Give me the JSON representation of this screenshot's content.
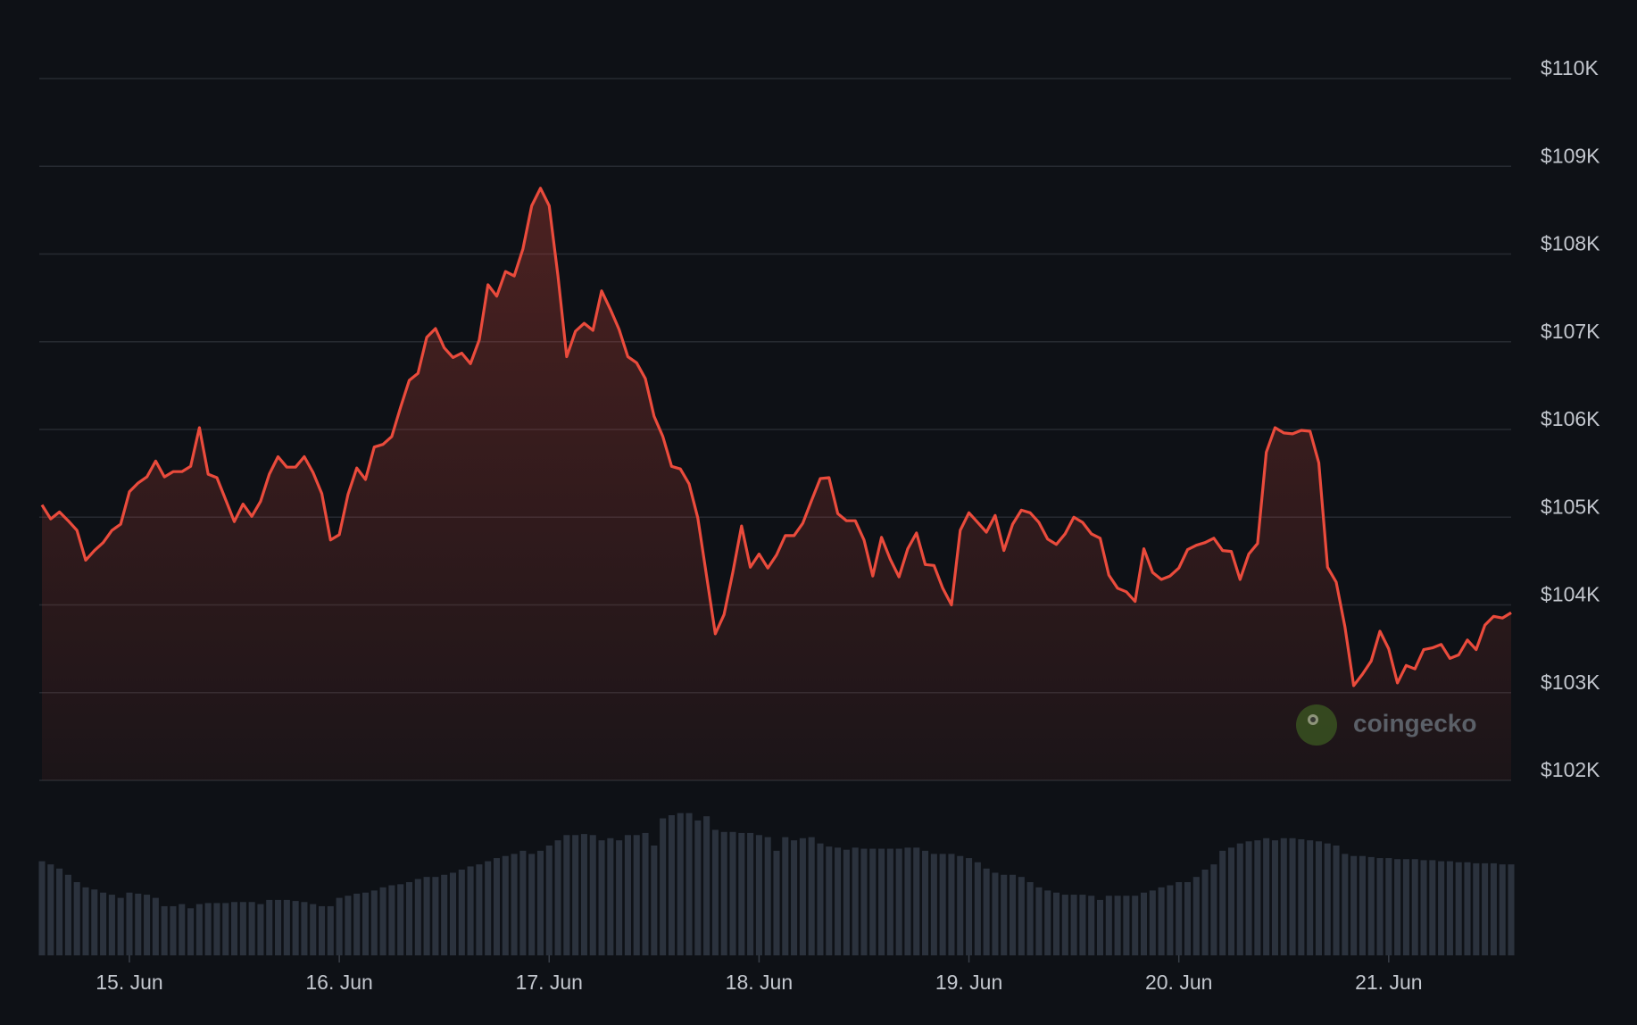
{
  "chart_data": {
    "type": "line",
    "categories": [
      null,
      null,
      null,
      null,
      null,
      null,
      null,
      null,
      null,
      null,
      "15. Jun",
      null,
      null,
      null,
      null,
      null,
      null,
      null,
      null,
      null,
      null,
      null,
      null,
      null,
      null,
      null,
      null,
      null,
      null,
      null,
      null,
      null,
      null,
      null,
      "16. Jun",
      null,
      null,
      null,
      null,
      null,
      null,
      null,
      null,
      null,
      null,
      null,
      null,
      null,
      null,
      null,
      null,
      null,
      null,
      null,
      null,
      null,
      null,
      null,
      "17. Jun",
      null,
      null,
      null,
      null,
      null,
      null,
      null,
      null,
      null,
      null,
      null,
      null,
      null,
      null,
      null,
      null,
      null,
      null,
      null,
      null,
      null,
      null,
      null,
      "18. Jun",
      null,
      null,
      null,
      null,
      null,
      null,
      null,
      null,
      null,
      null,
      null,
      null,
      null,
      null,
      null,
      null,
      null,
      null,
      null,
      null,
      null,
      null,
      null,
      "19. Jun",
      null,
      null,
      null,
      null,
      null,
      null,
      null,
      null,
      null,
      null,
      null,
      null,
      null,
      null,
      null,
      null,
      null,
      null,
      null,
      null,
      null,
      null,
      null,
      "20. Jun",
      null,
      null,
      null,
      null,
      null,
      null,
      null,
      null,
      null,
      null,
      null,
      null,
      null,
      null,
      null,
      null,
      null,
      null,
      null,
      null,
      null,
      null,
      null,
      "21. Jun",
      null,
      null,
      null,
      null,
      null,
      null,
      null,
      null,
      null,
      null,
      null,
      null,
      null,
      null
    ],
    "series": [
      {
        "color": "#ea4b3c",
        "values": [
          105140,
          104980,
          105060,
          104960,
          104850,
          104510,
          104620,
          104710,
          104850,
          104920,
          105290,
          105390,
          105460,
          105640,
          105460,
          105520,
          105520,
          105580,
          106020,
          105490,
          105450,
          105200,
          104950,
          105150,
          105010,
          105180,
          105490,
          105690,
          105570,
          105570,
          105690,
          105510,
          105270,
          104740,
          104800,
          105260,
          105560,
          105430,
          105800,
          105830,
          105920,
          106250,
          106560,
          106640,
          107050,
          107150,
          106930,
          106820,
          106870,
          106750,
          107020,
          107650,
          107520,
          107800,
          107750,
          108060,
          108550,
          108750,
          108550,
          107750,
          106830,
          107120,
          107210,
          107130,
          107580,
          107370,
          107140,
          106830,
          106760,
          106580,
          106150,
          105920,
          105580,
          105550,
          105380,
          104990,
          104330,
          103670,
          103890,
          104370,
          104900,
          104430,
          104580,
          104420,
          104570,
          104790,
          104790,
          104930,
          105190,
          105440,
          105450,
          105040,
          104960,
          104960,
          104740,
          104330,
          104770,
          104520,
          104320,
          104640,
          104820,
          104460,
          104450,
          104190,
          104000,
          104850,
          105050,
          104940,
          104830,
          105020,
          104620,
          104920,
          105080,
          105050,
          104940,
          104750,
          104690,
          104810,
          105000,
          104940,
          104810,
          104760,
          104340,
          104190,
          104150,
          104040,
          104640,
          104370,
          104290,
          104330,
          104420,
          104630,
          104680,
          104710,
          104760,
          104620,
          104610,
          104290,
          104580,
          104700,
          105740,
          106020,
          105960,
          105950,
          105990,
          105980,
          105620,
          104430,
          104260,
          103750,
          103080,
          103210,
          103360,
          103700,
          103500,
          103110,
          103310,
          103270,
          103490,
          103510,
          103550,
          103390,
          103430,
          103600,
          103490,
          103770,
          103870,
          103850,
          103910
        ]
      }
    ],
    "ylim": [
      102000,
      110000
    ],
    "yticks": [
      {
        "value": 102000,
        "label": "$102K"
      },
      {
        "value": 103000,
        "label": "$103K"
      },
      {
        "value": 104000,
        "label": "$104K"
      },
      {
        "value": 105000,
        "label": "$105K"
      },
      {
        "value": 106000,
        "label": "$106K"
      },
      {
        "value": 107000,
        "label": "$107K"
      },
      {
        "value": 108000,
        "label": "$108K"
      },
      {
        "value": 109000,
        "label": "$109K"
      },
      {
        "value": 110000,
        "label": "$110K"
      }
    ],
    "grid": true,
    "volume": {
      "color": "#2b323d",
      "ylim": [
        0,
        140
      ],
      "values": [
        90,
        87,
        83,
        77,
        70,
        65,
        63,
        60,
        58,
        55,
        60,
        59,
        58,
        55,
        47,
        47,
        49,
        45,
        49,
        50,
        50,
        50,
        51,
        51,
        51,
        49,
        53,
        53,
        53,
        52,
        51,
        49,
        47,
        47,
        55,
        57,
        59,
        60,
        62,
        65,
        67,
        68,
        70,
        73,
        75,
        75,
        77,
        79,
        82,
        85,
        87,
        90,
        93,
        95,
        97,
        100,
        97,
        100,
        105,
        110,
        115,
        115,
        116,
        115,
        110,
        112,
        110,
        115,
        115,
        117,
        105,
        131,
        134,
        136,
        136,
        129,
        133,
        120,
        118,
        118,
        117,
        117,
        115,
        113,
        100,
        113,
        110,
        112,
        113,
        107,
        104,
        103,
        101,
        103,
        102,
        102,
        102,
        102,
        102,
        103,
        103,
        100,
        97,
        97,
        97,
        95,
        93,
        89,
        83,
        79,
        77,
        77,
        75,
        70,
        65,
        62,
        60,
        58,
        58,
        58,
        57,
        53,
        57,
        57,
        57,
        57,
        60,
        62,
        65,
        67,
        70,
        70,
        75,
        82,
        87,
        100,
        103,
        107,
        109,
        110,
        112,
        110,
        112,
        112,
        111,
        110,
        109,
        107,
        105,
        97,
        95,
        95,
        94,
        93,
        93,
        92,
        92,
        92,
        91,
        91,
        90,
        90,
        89,
        89,
        88,
        88,
        88,
        87,
        87
      ]
    },
    "watermark": "coingecko"
  }
}
